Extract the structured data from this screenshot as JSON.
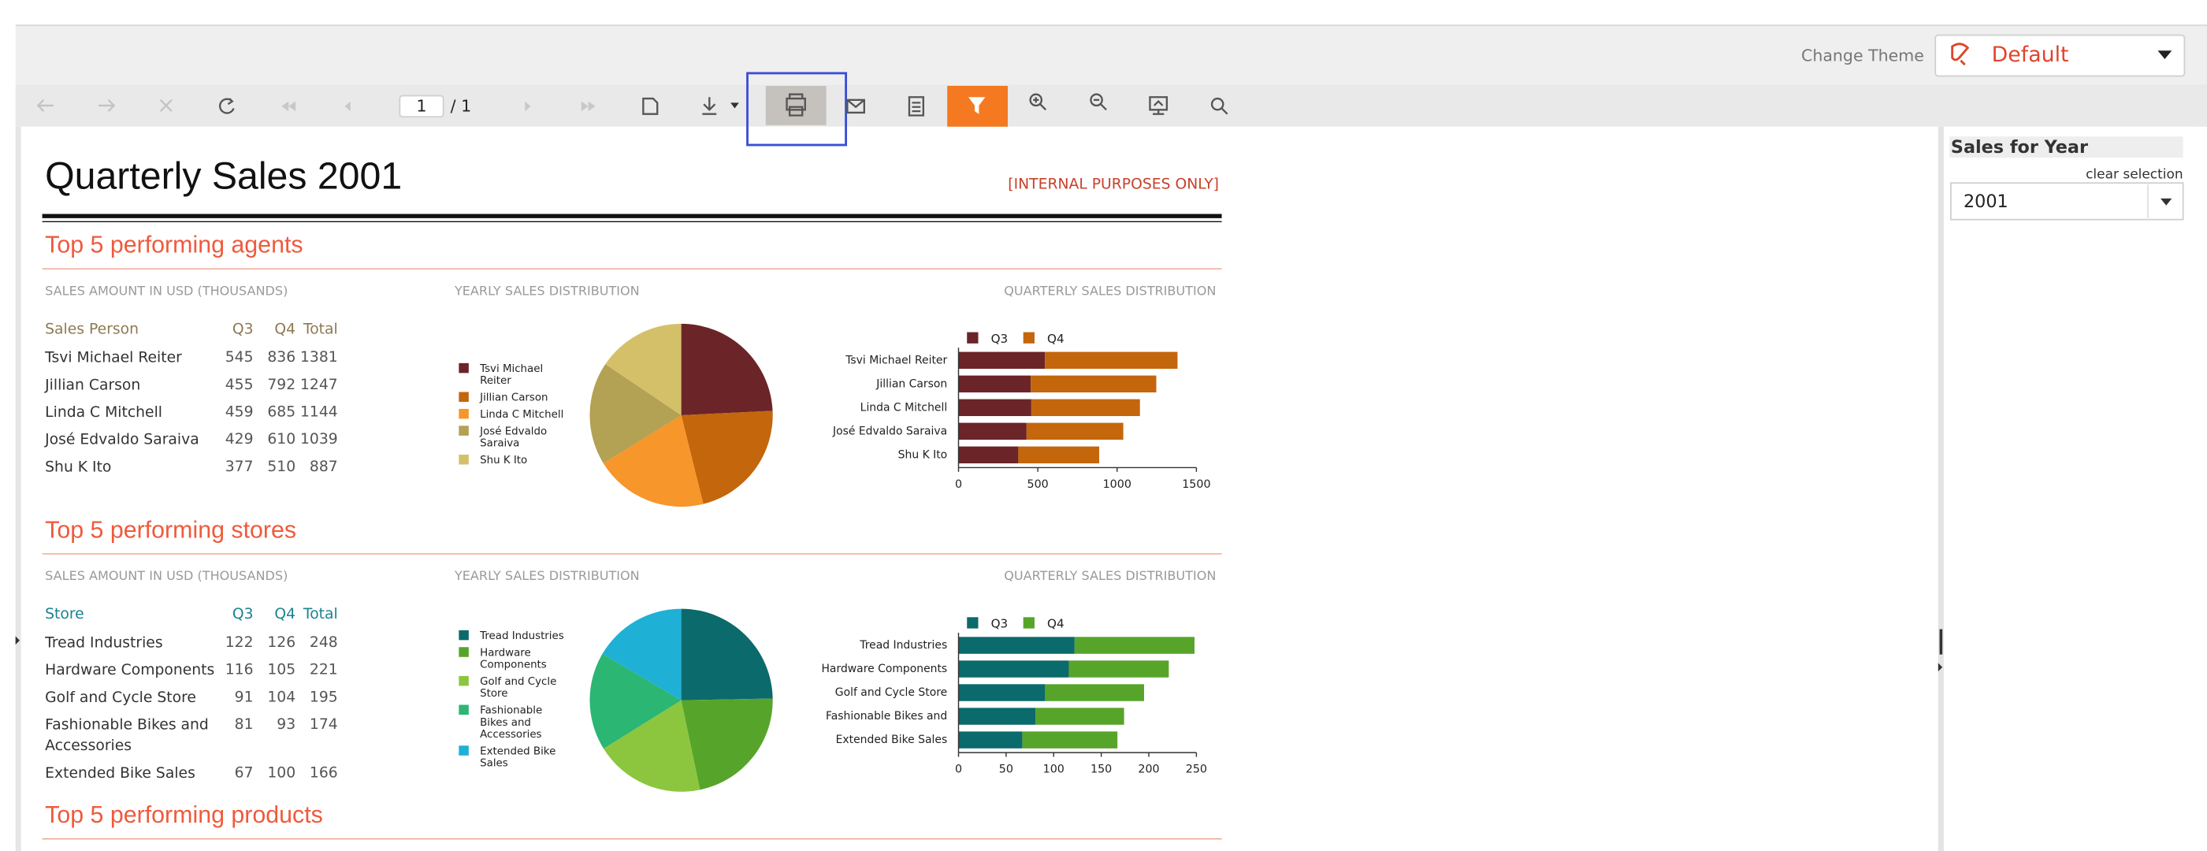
{
  "theme": {
    "label": "Change Theme",
    "value": "Default"
  },
  "toolbar": {
    "page": "1",
    "page_count": "/ 1"
  },
  "report": {
    "title": "Quarterly Sales 2001",
    "note": "[INTERNAL PURPOSES ONLY]",
    "sections": [
      {
        "heading": "Top 5 performing agents",
        "table_caption": "SALES AMOUNT IN USD (THOUSANDS)",
        "pie_caption": "YEARLY SALES DISTRIBUTION",
        "bar_caption": "QUARTERLY SALES DISTRIBUTION",
        "header_color": "#8c7a52",
        "columns": [
          "Sales Person",
          "Q3",
          "Q4",
          "Total"
        ],
        "rows": [
          [
            "Tsvi Michael Reiter",
            545,
            836,
            1381
          ],
          [
            "Jillian Carson",
            455,
            792,
            1247
          ],
          [
            "Linda C Mitchell",
            459,
            685,
            1144
          ],
          [
            "José Edvaldo Saraiva",
            429,
            610,
            1039
          ],
          [
            "Shu K Ito",
            377,
            510,
            887
          ]
        ],
        "pie_colors": [
          "#6b2428",
          "#c4660b",
          "#f7962a",
          "#b3a154",
          "#d5c06a"
        ],
        "bar_categories": [
          "Tsvi Michael Reiter",
          "Jillian Carson",
          "Linda C Mitchell",
          "José Edvaldo Saraiva",
          "Shu K Ito"
        ],
        "bar_legend": [
          "Q3",
          "Q4"
        ],
        "bar_colors": [
          "#6b2428",
          "#c4660b"
        ],
        "xlim": [
          0,
          1500
        ],
        "xticks": [
          0,
          500,
          1000,
          1500
        ]
      },
      {
        "heading": "Top 5 performing stores",
        "table_caption": "SALES AMOUNT IN USD (THOUSANDS)",
        "pie_caption": "YEARLY SALES DISTRIBUTION",
        "bar_caption": "QUARTERLY SALES DISTRIBUTION",
        "header_color": "#1a8390",
        "columns": [
          "Store",
          "Q3",
          "Q4",
          "Total"
        ],
        "rows": [
          [
            "Tread Industries",
            122,
            126,
            248
          ],
          [
            "Hardware Components",
            116,
            105,
            221
          ],
          [
            "Golf and Cycle Store",
            91,
            104,
            195
          ],
          [
            "Fashionable Bikes and Accessories",
            81,
            93,
            174
          ],
          [
            "Extended Bike Sales",
            67,
            100,
            166
          ]
        ],
        "pie_colors": [
          "#0b6a6b",
          "#57a42a",
          "#8cc63e",
          "#2bb673",
          "#1fb0d6"
        ],
        "bar_categories": [
          "Tread Industries",
          "Hardware Components",
          "Golf and Cycle Store",
          "Fashionable Bikes and",
          "Extended Bike Sales"
        ],
        "bar_legend": [
          "Q3",
          "Q4"
        ],
        "bar_colors": [
          "#0b6a6b",
          "#57a42a"
        ],
        "xlim": [
          0,
          250
        ],
        "xticks": [
          0,
          50,
          100,
          150,
          200,
          250
        ]
      },
      {
        "heading": "Top 5 performing products"
      }
    ]
  },
  "sidebar": {
    "title": "Sales for Year",
    "clear": "clear selection",
    "value": "2001"
  }
}
